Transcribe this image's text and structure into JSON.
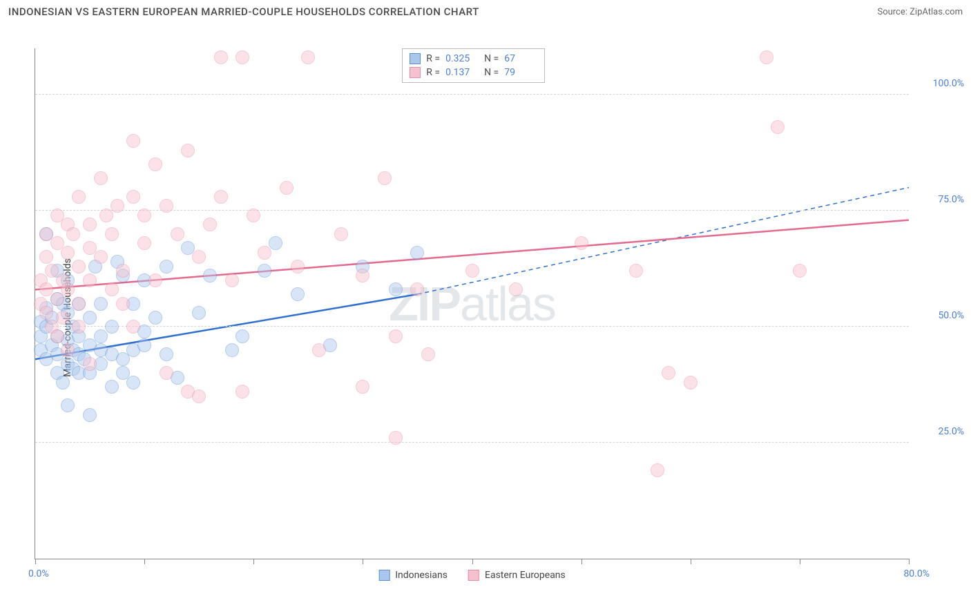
{
  "title": "INDONESIAN VS EASTERN EUROPEAN MARRIED-COUPLE HOUSEHOLDS CORRELATION CHART",
  "source": "Source: ZipAtlas.com",
  "watermark_zip": "ZIP",
  "watermark_atlas": "atlas",
  "chart": {
    "type": "scatter",
    "background_color": "#ffffff",
    "grid_color": "#d5d5d5",
    "axis_color": "#888888",
    "xlim": [
      0,
      80
    ],
    "ylim": [
      0,
      110
    ],
    "xtick_positions": [
      0,
      10,
      20,
      30,
      40,
      50,
      60,
      70,
      80
    ],
    "ytick_positions": [
      25,
      50,
      75,
      100
    ],
    "ytick_labels": [
      "25.0%",
      "50.0%",
      "75.0%",
      "100.0%"
    ],
    "xlabel_min": "0.0%",
    "xlabel_max": "80.0%",
    "yaxis_title": "Married-couple Households",
    "label_color": "#4a7fd8",
    "label_fontsize": 14,
    "marker_radius": 10,
    "marker_opacity": 0.45,
    "marker_border_width": 1.5
  },
  "series": [
    {
      "key": "indonesians",
      "name": "Indonesians",
      "fill_color": "#a9c7ec",
      "stroke_color": "#5a8fd6",
      "line_color": "#2e6fd0",
      "R": "0.325",
      "N": "67",
      "trend": {
        "x1": 0,
        "y1": 43,
        "x2": 35,
        "y2": 57,
        "x2_dash": 80,
        "y2_dash": 80
      },
      "points": [
        [
          0.5,
          48
        ],
        [
          0.5,
          51
        ],
        [
          0.5,
          45
        ],
        [
          1,
          50
        ],
        [
          1,
          54
        ],
        [
          1,
          70
        ],
        [
          1,
          43
        ],
        [
          1.5,
          52
        ],
        [
          1.5,
          46
        ],
        [
          2,
          56
        ],
        [
          2,
          48
        ],
        [
          2,
          40
        ],
        [
          2,
          44
        ],
        [
          2,
          62
        ],
        [
          2.5,
          55
        ],
        [
          2.5,
          38
        ],
        [
          3,
          47
        ],
        [
          3,
          42
        ],
        [
          3,
          53
        ],
        [
          3,
          33
        ],
        [
          3,
          60
        ],
        [
          3.5,
          41
        ],
        [
          3.5,
          50
        ],
        [
          3.5,
          45
        ],
        [
          4,
          44
        ],
        [
          4,
          40
        ],
        [
          4,
          55
        ],
        [
          4,
          48
        ],
        [
          4.5,
          43
        ],
        [
          5,
          46
        ],
        [
          5,
          31
        ],
        [
          5,
          52
        ],
        [
          5,
          40
        ],
        [
          5.5,
          63
        ],
        [
          6,
          42
        ],
        [
          6,
          48
        ],
        [
          6,
          45
        ],
        [
          6,
          55
        ],
        [
          7,
          37
        ],
        [
          7,
          44
        ],
        [
          7,
          50
        ],
        [
          7.5,
          64
        ],
        [
          8,
          61
        ],
        [
          8,
          43
        ],
        [
          8,
          40
        ],
        [
          9,
          55
        ],
        [
          9,
          45
        ],
        [
          9,
          38
        ],
        [
          10,
          60
        ],
        [
          10,
          46
        ],
        [
          10,
          49
        ],
        [
          11,
          52
        ],
        [
          12,
          63
        ],
        [
          12,
          44
        ],
        [
          13,
          39
        ],
        [
          14,
          67
        ],
        [
          15,
          53
        ],
        [
          16,
          61
        ],
        [
          18,
          45
        ],
        [
          19,
          48
        ],
        [
          21,
          62
        ],
        [
          22,
          68
        ],
        [
          24,
          57
        ],
        [
          27,
          46
        ],
        [
          30,
          63
        ],
        [
          33,
          58
        ],
        [
          35,
          66
        ]
      ]
    },
    {
      "key": "eastern_europeans",
      "name": "Eastern Europeans",
      "fill_color": "#f6c1ce",
      "stroke_color": "#e98aa3",
      "line_color": "#e36a8e",
      "R": "0.137",
      "N": "79",
      "trend": {
        "x1": 0,
        "y1": 58,
        "x2": 80,
        "y2": 73
      },
      "points": [
        [
          0.5,
          55
        ],
        [
          0.5,
          60
        ],
        [
          1,
          53
        ],
        [
          1,
          58
        ],
        [
          1,
          65
        ],
        [
          1,
          70
        ],
        [
          1.5,
          50
        ],
        [
          1.5,
          62
        ],
        [
          2,
          56
        ],
        [
          2,
          68
        ],
        [
          2,
          48
        ],
        [
          2,
          74
        ],
        [
          2.5,
          60
        ],
        [
          2.5,
          52
        ],
        [
          3,
          58
        ],
        [
          3,
          66
        ],
        [
          3,
          72
        ],
        [
          3,
          45
        ],
        [
          3.5,
          70
        ],
        [
          4,
          55
        ],
        [
          4,
          63
        ],
        [
          4,
          50
        ],
        [
          4,
          78
        ],
        [
          5,
          67
        ],
        [
          5,
          60
        ],
        [
          5,
          72
        ],
        [
          5,
          42
        ],
        [
          6,
          65
        ],
        [
          6,
          82
        ],
        [
          6.5,
          74
        ],
        [
          7,
          58
        ],
        [
          7,
          70
        ],
        [
          7.5,
          76
        ],
        [
          8,
          62
        ],
        [
          8,
          55
        ],
        [
          9,
          78
        ],
        [
          9,
          50
        ],
        [
          9,
          90
        ],
        [
          10,
          68
        ],
        [
          10,
          74
        ],
        [
          11,
          60
        ],
        [
          11,
          85
        ],
        [
          12,
          76
        ],
        [
          12,
          40
        ],
        [
          13,
          70
        ],
        [
          14,
          88
        ],
        [
          14,
          36
        ],
        [
          15,
          65
        ],
        [
          15,
          35
        ],
        [
          16,
          72
        ],
        [
          17,
          108
        ],
        [
          17,
          78
        ],
        [
          18,
          60
        ],
        [
          19,
          36
        ],
        [
          19,
          108
        ],
        [
          20,
          74
        ],
        [
          21,
          66
        ],
        [
          23,
          80
        ],
        [
          24,
          63
        ],
        [
          25,
          108
        ],
        [
          26,
          45
        ],
        [
          28,
          70
        ],
        [
          30,
          61
        ],
        [
          30,
          37
        ],
        [
          32,
          82
        ],
        [
          33,
          26
        ],
        [
          33,
          48
        ],
        [
          35,
          58
        ],
        [
          36,
          44
        ],
        [
          40,
          62
        ],
        [
          44,
          58
        ],
        [
          50,
          68
        ],
        [
          55,
          62
        ],
        [
          57,
          19
        ],
        [
          58,
          40
        ],
        [
          60,
          38
        ],
        [
          67,
          108
        ],
        [
          68,
          93
        ],
        [
          70,
          62
        ]
      ]
    }
  ],
  "legend": {
    "r_label": "R =",
    "n_label": "N ="
  }
}
